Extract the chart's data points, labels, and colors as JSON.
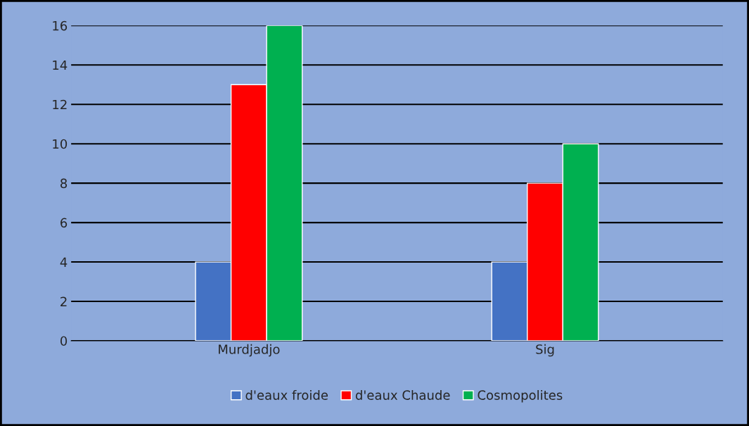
{
  "chart_data": {
    "type": "bar",
    "categories": [
      "Murdjadjo",
      "Sig"
    ],
    "series": [
      {
        "name": "d'eaux froide",
        "color": "#4472c4",
        "values": [
          4,
          4
        ]
      },
      {
        "name": "d'eaux Chaude",
        "color": "#ff0000",
        "values": [
          13,
          8
        ]
      },
      {
        "name": "Cosmopolites",
        "color": "#00b050",
        "values": [
          16,
          10
        ]
      }
    ],
    "ylim": [
      0,
      16
    ],
    "yticks": [
      0,
      2,
      4,
      6,
      8,
      10,
      12,
      14,
      16
    ],
    "grid": "y",
    "legend": "bottom"
  }
}
